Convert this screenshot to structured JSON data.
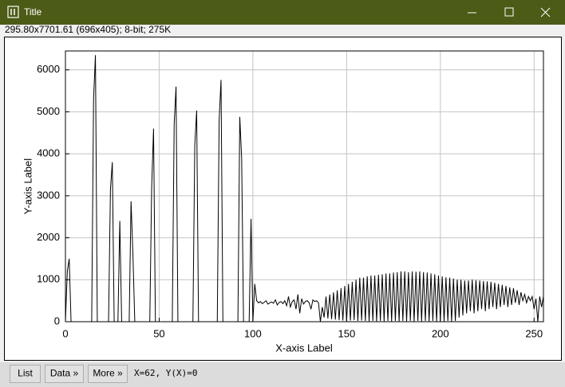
{
  "window": {
    "title": "Title",
    "info": "295.80x7701.61  (696x405); 8-bit; 275K"
  },
  "chart_data": {
    "type": "line",
    "xlabel": "X-axis Label",
    "ylabel": "Y-axis Label",
    "color": "#000000",
    "grid": true,
    "xlim": [
      0,
      255
    ],
    "ylim": [
      0,
      6450
    ],
    "xticks": [
      0,
      50,
      100,
      150,
      200,
      250
    ],
    "yticks": [
      0,
      1000,
      2000,
      3000,
      4000,
      5000,
      6000
    ],
    "x": [
      0,
      1,
      2,
      3,
      4,
      5,
      6,
      7,
      8,
      9,
      10,
      11,
      12,
      13,
      14,
      15,
      16,
      17,
      18,
      19,
      20,
      21,
      22,
      23,
      24,
      25,
      26,
      27,
      28,
      29,
      30,
      31,
      32,
      33,
      34,
      35,
      36,
      37,
      38,
      39,
      40,
      41,
      42,
      43,
      44,
      45,
      46,
      47,
      48,
      49,
      50,
      51,
      52,
      53,
      54,
      55,
      56,
      57,
      58,
      59,
      60,
      61,
      62,
      63,
      64,
      65,
      66,
      67,
      68,
      69,
      70,
      71,
      72,
      73,
      74,
      75,
      76,
      77,
      78,
      79,
      80,
      81,
      82,
      83,
      84,
      85,
      86,
      87,
      88,
      89,
      90,
      91,
      92,
      93,
      94,
      95,
      96,
      97,
      98,
      99,
      100,
      101,
      102,
      103,
      104,
      105,
      106,
      107,
      108,
      109,
      110,
      111,
      112,
      113,
      114,
      115,
      116,
      117,
      118,
      119,
      120,
      121,
      122,
      123,
      124,
      125,
      126,
      127,
      128,
      129,
      130,
      131,
      132,
      133,
      134,
      135,
      136,
      137,
      138,
      139,
      140,
      141,
      142,
      143,
      144,
      145,
      146,
      147,
      148,
      149,
      150,
      151,
      152,
      153,
      154,
      155,
      156,
      157,
      158,
      159,
      160,
      161,
      162,
      163,
      164,
      165,
      166,
      167,
      168,
      169,
      170,
      171,
      172,
      173,
      174,
      175,
      176,
      177,
      178,
      179,
      180,
      181,
      182,
      183,
      184,
      185,
      186,
      187,
      188,
      189,
      190,
      191,
      192,
      193,
      194,
      195,
      196,
      197,
      198,
      199,
      200,
      201,
      202,
      203,
      204,
      205,
      206,
      207,
      208,
      209,
      210,
      211,
      212,
      213,
      214,
      215,
      216,
      217,
      218,
      219,
      220,
      221,
      222,
      223,
      224,
      225,
      226,
      227,
      228,
      229,
      230,
      231,
      232,
      233,
      234,
      235,
      236,
      237,
      238,
      239,
      240,
      241,
      242,
      243,
      244,
      245,
      246,
      247,
      248,
      249,
      250,
      251,
      252,
      253,
      254,
      255
    ],
    "values": [
      0,
      1200,
      1500,
      0,
      0,
      0,
      0,
      0,
      0,
      0,
      0,
      0,
      0,
      0,
      0,
      5300,
      6350,
      0,
      0,
      0,
      0,
      0,
      0,
      0,
      3150,
      3800,
      0,
      0,
      0,
      2400,
      0,
      0,
      0,
      0,
      0,
      2870,
      1600,
      0,
      0,
      0,
      0,
      0,
      0,
      0,
      0,
      0,
      3200,
      4600,
      0,
      0,
      0,
      0,
      0,
      0,
      0,
      0,
      0,
      0,
      4700,
      5600,
      0,
      0,
      0,
      0,
      0,
      0,
      0,
      0,
      0,
      4200,
      5030,
      0,
      0,
      0,
      0,
      0,
      0,
      0,
      0,
      0,
      0,
      0,
      4800,
      5760,
      0,
      0,
      0,
      0,
      0,
      0,
      0,
      0,
      0,
      4880,
      3900,
      0,
      0,
      0,
      0,
      2450,
      0,
      900,
      500,
      450,
      480,
      430,
      460,
      500,
      420,
      450,
      470,
      440,
      520,
      400,
      460,
      480,
      430,
      500,
      380,
      600,
      350,
      480,
      520,
      300,
      650,
      200,
      550,
      420,
      480,
      500,
      450,
      300,
      520,
      480,
      500,
      450,
      0,
      350,
      100,
      600,
      80,
      650,
      60,
      700,
      50,
      750,
      40,
      800,
      30,
      850,
      20,
      900,
      30,
      950,
      40,
      1000,
      20,
      1050,
      30,
      1050,
      20,
      1080,
      10,
      1100,
      20,
      1100,
      10,
      1120,
      20,
      1130,
      10,
      1150,
      20,
      1150,
      10,
      1170,
      20,
      1180,
      10,
      1200,
      20,
      1200,
      10,
      1180,
      20,
      1200,
      10,
      1190,
      20,
      1200,
      10,
      1180,
      20,
      1170,
      10,
      1150,
      20,
      1130,
      10,
      1100,
      20,
      1080,
      10,
      1060,
      20,
      1050,
      10,
      1030,
      20,
      1000,
      100,
      1000,
      150,
      980,
      200,
      980,
      250,
      1000,
      200,
      990,
      250,
      980,
      300,
      970,
      250,
      960,
      300,
      950,
      350,
      930,
      300,
      900,
      350,
      880,
      400,
      850,
      350,
      820,
      400,
      800,
      450,
      750,
      400,
      700,
      500,
      650,
      450,
      600,
      500,
      600,
      300,
      550,
      0,
      600,
      350,
      600
    ]
  },
  "buttons": [
    "List",
    "Data »",
    "More »"
  ],
  "status": "X=62, Y(X)=0"
}
